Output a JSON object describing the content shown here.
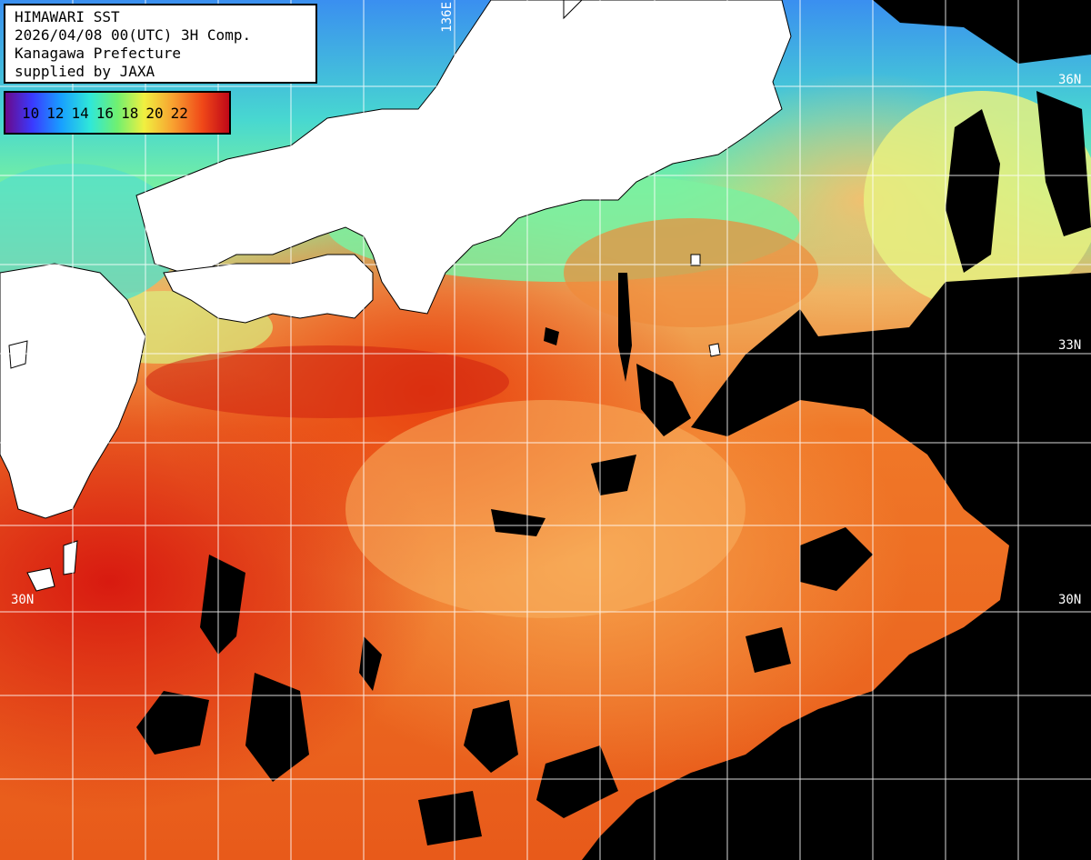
{
  "header": {
    "line1": "HIMAWARI SST",
    "line2": "2026/04/08 00(UTC) 3H Comp.",
    "line3": "Kanagawa Prefecture",
    "line4": "supplied by JAXA"
  },
  "colorbar": {
    "ticks": [
      "10",
      "12",
      "14",
      "16",
      "18",
      "20",
      "22"
    ]
  },
  "grid_labels": {
    "lat_36": "36N",
    "lat_33_right": "33N",
    "lat_30_left": "30N",
    "lat_30_right": "30N",
    "lon_136": "136E"
  },
  "colors": {
    "land": "#ffffff",
    "cloud_no_data": "#000000",
    "grid": "#ffffff"
  }
}
